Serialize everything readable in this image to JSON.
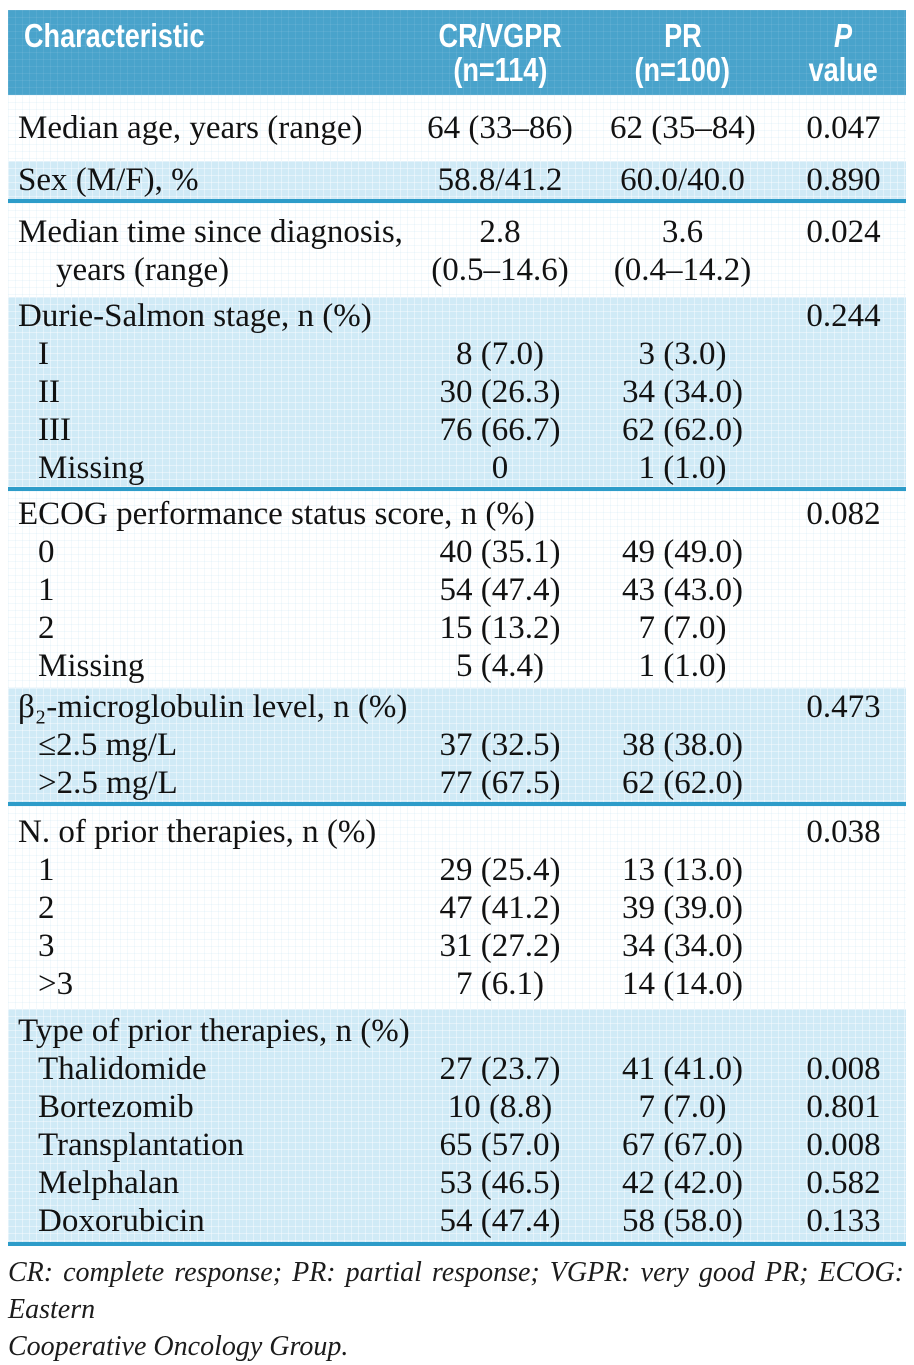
{
  "table": {
    "header": {
      "characteristic": "Characteristic",
      "col2": {
        "line1": "CR/VGPR",
        "line2": "(n=114)"
      },
      "col3": {
        "line1": "PR",
        "line2": "(n=100)"
      },
      "col4": {
        "line1": "P",
        "line2": "value"
      }
    },
    "sections": [
      {
        "bg": "white",
        "rows": [
          {
            "cells": [
              "Median age, years (range)",
              "64 (33–86)",
              "62 (35–84)",
              "0.047"
            ]
          }
        ]
      },
      {
        "bg": "blue",
        "rows": [
          {
            "cells": [
              "Sex (M/F), %",
              "58.8/41.2",
              "60.0/40.0",
              "0.890"
            ]
          }
        ]
      },
      {
        "bg": "white",
        "rows": [
          {
            "cells": [
              "Median time since diagnosis,",
              "2.8",
              "3.6",
              "0.024"
            ]
          },
          {
            "cells": [
              "years (range)",
              "(0.5–14.6)",
              "(0.4–14.2)",
              ""
            ]
          }
        ]
      },
      {
        "bg": "blue",
        "rows": [
          {
            "cells": [
              "Durie-Salmon stage, n (%)",
              "",
              "",
              "0.244"
            ]
          },
          {
            "cells": [
              "I",
              "8 (7.0)",
              "3 (3.0)",
              ""
            ]
          },
          {
            "cells": [
              "II",
              "30 (26.3)",
              "34 (34.0)",
              ""
            ]
          },
          {
            "cells": [
              "III",
              "76 (66.7)",
              "62 (62.0)",
              ""
            ]
          },
          {
            "cells": [
              "Missing",
              "0",
              "1 (1.0)",
              ""
            ]
          }
        ]
      },
      {
        "bg": "white",
        "rows": [
          {
            "cells": [
              "ECOG performance status score, n (%)",
              "",
              "",
              "0.082"
            ]
          },
          {
            "cells": [
              "0",
              "40 (35.1)",
              "49 (49.0)",
              ""
            ]
          },
          {
            "cells": [
              "1",
              "54 (47.4)",
              "43 (43.0)",
              ""
            ]
          },
          {
            "cells": [
              "2",
              "15 (13.2)",
              "7 (7.0)",
              ""
            ]
          },
          {
            "cells": [
              "Missing",
              "5 (4.4)",
              "1 (1.0)",
              ""
            ]
          }
        ]
      },
      {
        "bg": "blue",
        "rows": [
          {
            "cells": [
              "β₂-microglobulin level, n (%)",
              "",
              "",
              "0.473"
            ]
          },
          {
            "cells": [
              "≤2.5 mg/L",
              "37 (32.5)",
              "38 (38.0)",
              ""
            ]
          },
          {
            "cells": [
              ">2.5 mg/L",
              "77 (67.5)",
              "62 (62.0)",
              ""
            ]
          }
        ]
      },
      {
        "bg": "white",
        "rows": [
          {
            "cells": [
              "N. of prior therapies, n (%)",
              "",
              "",
              "0.038"
            ]
          },
          {
            "cells": [
              "1",
              "29 (25.4)",
              "13 (13.0)",
              ""
            ]
          },
          {
            "cells": [
              "2",
              "47 (41.2)",
              "39 (39.0)",
              ""
            ]
          },
          {
            "cells": [
              "3",
              "31 (27.2)",
              "34 (34.0)",
              ""
            ]
          },
          {
            "cells": [
              ">3",
              "7 (6.1)",
              "14 (14.0)",
              ""
            ]
          }
        ]
      },
      {
        "bg": "blue",
        "rows": [
          {
            "cells": [
              "Type of prior therapies, n (%)",
              "",
              "",
              ""
            ]
          },
          {
            "cells": [
              "Thalidomide",
              "27 (23.7)",
              "41 (41.0)",
              "0.008"
            ]
          },
          {
            "cells": [
              "Bortezomib",
              "10 (8.8)",
              "7 (7.0)",
              "0.801"
            ]
          },
          {
            "cells": [
              "Transplantation",
              "65 (57.0)",
              "67 (67.0)",
              "0.008"
            ]
          },
          {
            "cells": [
              "Melphalan",
              "53 (46.5)",
              "42 (42.0)",
              "0.582"
            ]
          },
          {
            "cells": [
              "Doxorubicin",
              "54 (47.4)",
              "58 (58.0)",
              "0.133"
            ]
          }
        ]
      }
    ]
  },
  "footnote": {
    "line1": "CR: complete response; PR: partial response; VGPR: very good PR; ECOG: Eastern",
    "line2": "Cooperative Oncology Group."
  },
  "colors": {
    "header_bg": "#49a3cb",
    "band_bg": "#d0eaf6",
    "divider": "#2d9cc9",
    "text": "#121212"
  }
}
